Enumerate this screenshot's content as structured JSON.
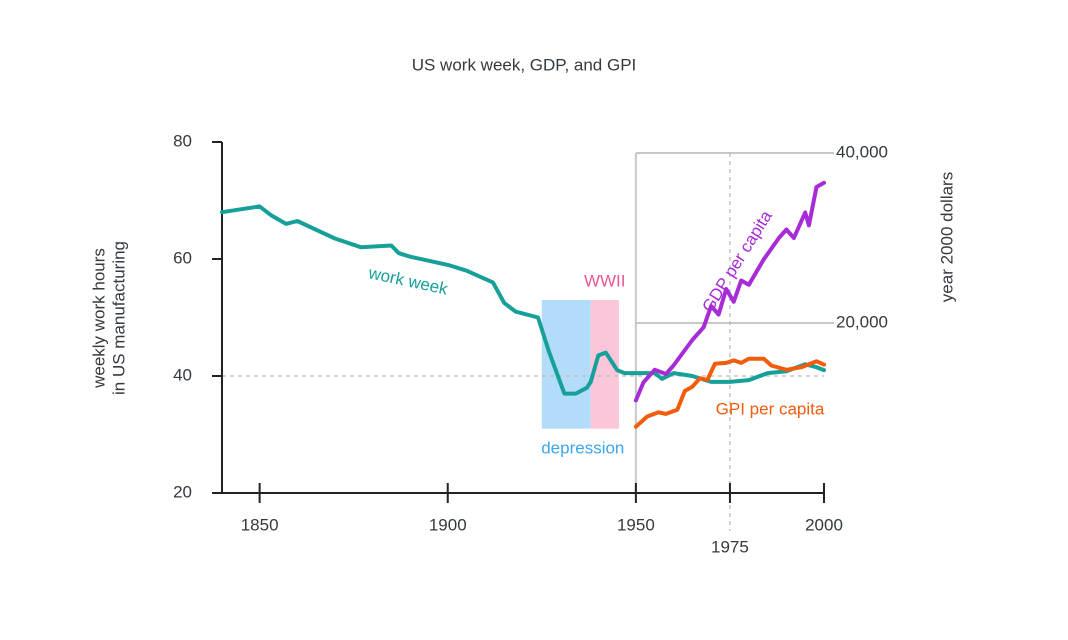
{
  "chart_data": {
    "type": "line",
    "title": "US work week, GDP, and GPI",
    "y_label": [
      "weekly work hours",
      "in US manufacturing"
    ],
    "y2_label": "year 2000 dollars",
    "xlim": [
      1840,
      2000
    ],
    "xticks": [
      1850,
      1900,
      1950,
      1975,
      2000
    ],
    "ylim": [
      20,
      80
    ],
    "yticks": [
      20,
      40,
      60,
      80
    ],
    "y2lim": [
      0,
      40000
    ],
    "y2ticks": [
      {
        "value": 20000,
        "label": "20,000"
      },
      {
        "value": 40000,
        "label": "40,000"
      }
    ],
    "reference_y": 40,
    "reference_x": 1975,
    "shaded_regions": [
      {
        "label": "depression",
        "start": 1925,
        "end": 1938,
        "low": 31,
        "high": 53,
        "color": "#b3dcfa",
        "text_color": "#3ba6ef"
      },
      {
        "label": "WWII",
        "start": 1938,
        "end": 1945.5,
        "low": 31,
        "high": 53,
        "color": "#fbc6da",
        "text_color": "#e9578f"
      }
    ],
    "series": [
      {
        "name": "work week",
        "color": "#17a09a",
        "axis": "y",
        "x": [
          1840,
          1850,
          1853,
          1857,
          1860,
          1870,
          1877,
          1885,
          1887,
          1890,
          1900,
          1905,
          1912,
          1915,
          1918,
          1924,
          1927,
          1931,
          1934,
          1937,
          1938,
          1940,
          1942,
          1945,
          1947,
          1950,
          1955,
          1957,
          1960,
          1965,
          1970,
          1975,
          1980,
          1985,
          1990,
          1995,
          1998,
          2000
        ],
        "values": [
          68,
          69,
          67.5,
          66,
          66.5,
          63.5,
          62,
          62.3,
          61,
          60.4,
          59,
          58,
          56,
          52.5,
          51,
          50,
          44,
          37,
          37,
          38,
          39,
          43.5,
          44,
          41,
          40.5,
          40.5,
          40.5,
          39.5,
          40.5,
          40,
          39,
          39,
          39.3,
          40.5,
          40.8,
          42,
          41.5,
          41
        ]
      },
      {
        "name": "GDP per capita",
        "color": "#a72bd6",
        "axis": "y2",
        "x": [
          1950,
          1952,
          1955,
          1958,
          1960,
          1965,
          1968,
          1970,
          1972,
          1974,
          1976,
          1978,
          1980,
          1984,
          1988,
          1990,
          1992,
          1995,
          1996,
          1998,
          2000
        ],
        "values": [
          10900,
          13000,
          14500,
          14000,
          15000,
          18000,
          19500,
          22000,
          21000,
          24000,
          22500,
          25000,
          24500,
          27500,
          30000,
          31000,
          30000,
          33000,
          31500,
          36000,
          36500
        ]
      },
      {
        "name": "GPI per capita",
        "color": "#f25c0a",
        "axis": "y2",
        "x": [
          1950,
          1953,
          1956,
          1958,
          1961,
          1963,
          1965,
          1967,
          1969,
          1971,
          1974,
          1976,
          1978,
          1980,
          1984,
          1986,
          1990,
          1994,
          1998,
          2000
        ],
        "values": [
          7800,
          9000,
          9500,
          9300,
          9800,
          12000,
          12500,
          13500,
          13300,
          15200,
          15300,
          15600,
          15300,
          15800,
          15800,
          15000,
          14500,
          14800,
          15500,
          15100
        ]
      }
    ]
  }
}
